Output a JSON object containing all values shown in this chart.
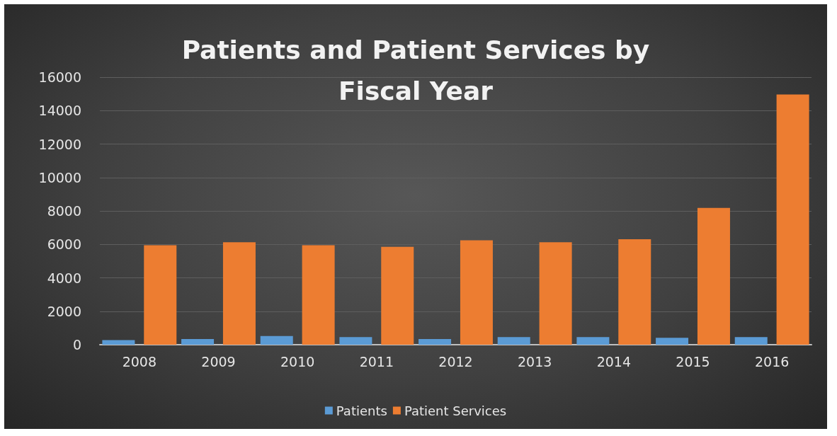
{
  "chart_data": {
    "type": "bar",
    "title": "Patients and Patient Services by\nFiscal Year",
    "categories": [
      "2008",
      "2009",
      "2010",
      "2011",
      "2012",
      "2013",
      "2014",
      "2015",
      "2016"
    ],
    "series": [
      {
        "name": "Patients",
        "color": "#5b9bd5",
        "values": [
          280,
          340,
          520,
          460,
          340,
          460,
          460,
          410,
          460
        ]
      },
      {
        "name": "Patient Services",
        "color": "#ed7d31",
        "values": [
          5950,
          6130,
          5950,
          5850,
          6240,
          6130,
          6310,
          8180,
          14960
        ]
      }
    ],
    "ylim": [
      0,
      16000
    ],
    "yticks": [
      0,
      2000,
      4000,
      6000,
      8000,
      10000,
      12000,
      14000,
      16000
    ],
    "grid": "y",
    "legend": "bottom"
  }
}
